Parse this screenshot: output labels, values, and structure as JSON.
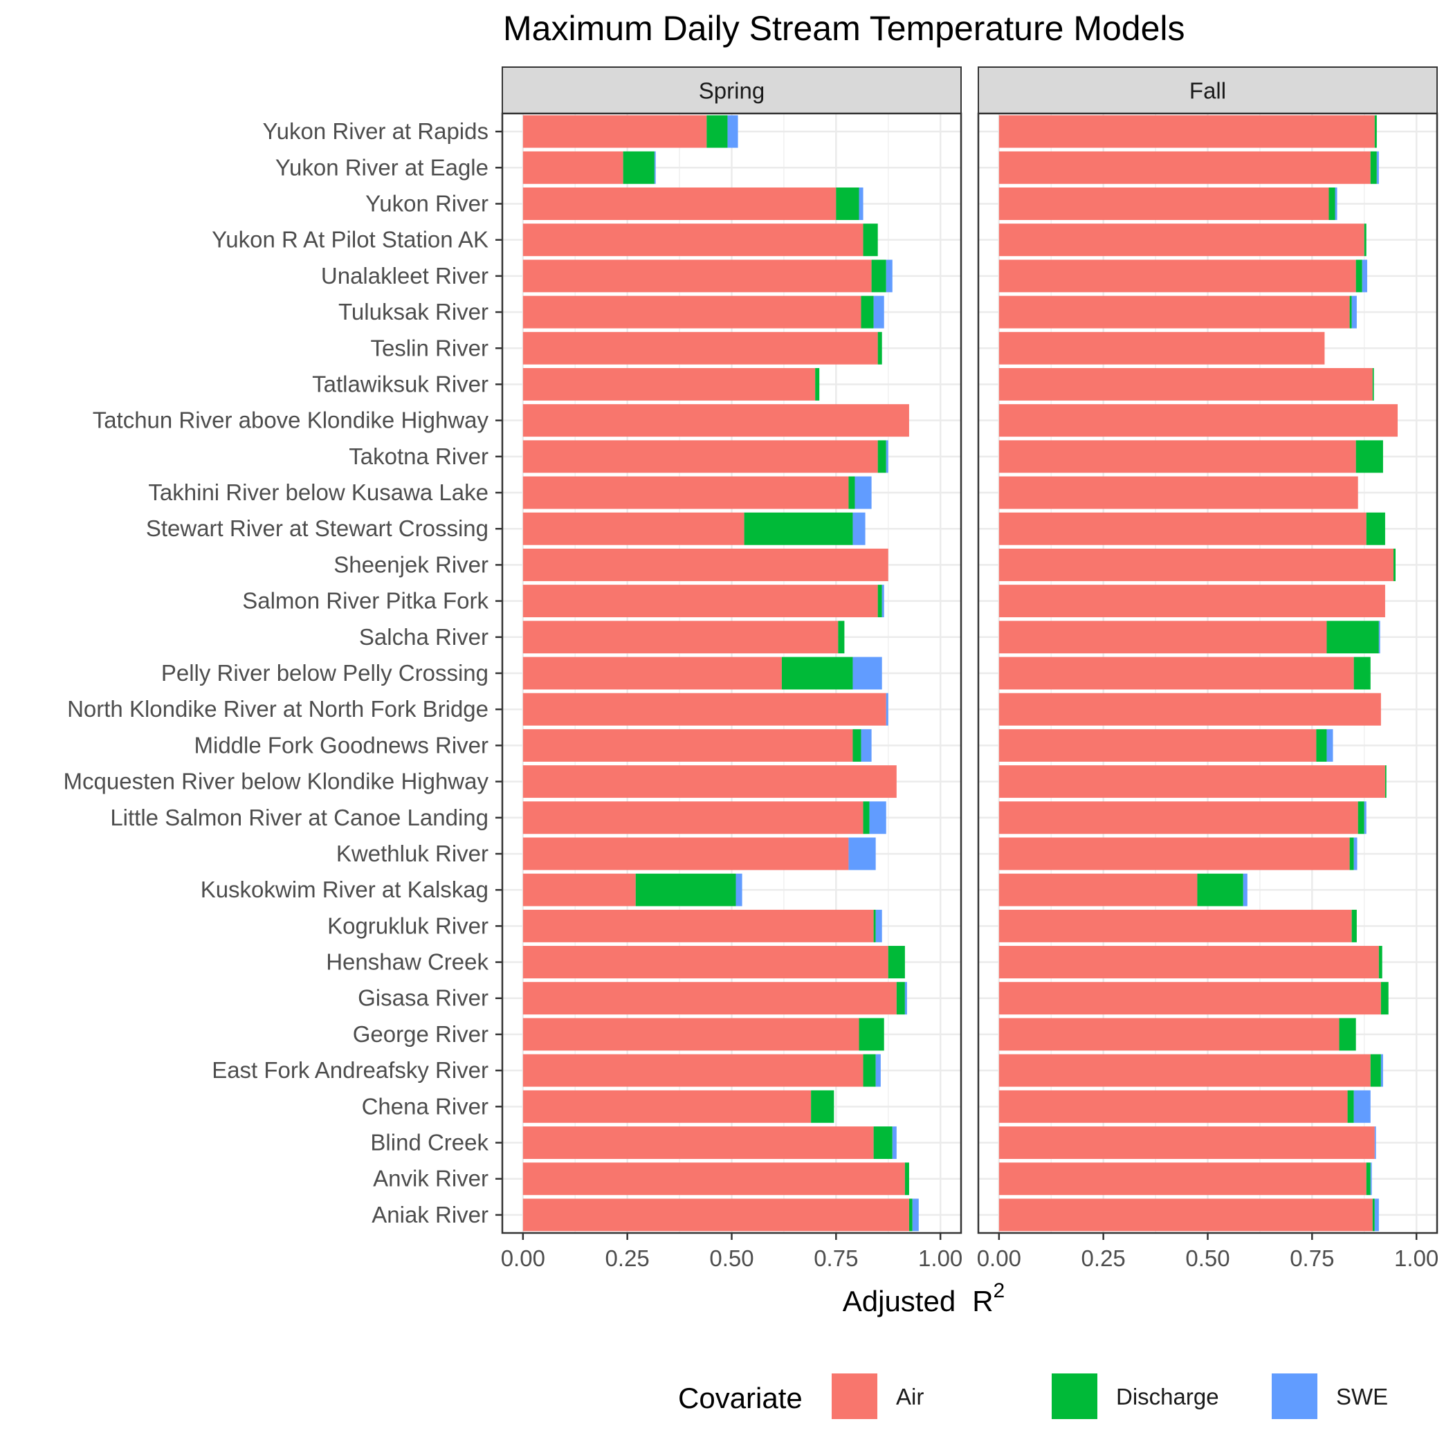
{
  "chart_data": {
    "type": "bar",
    "stacked": true,
    "orientation": "horizontal",
    "title": "Maximum Daily Stream Temperature Models",
    "xlabel": "Adjusted",
    "xlabel_r": "R",
    "xlabel_sup": "2",
    "xlim": [
      0,
      1
    ],
    "xticks": [
      "0.00",
      "0.25",
      "0.50",
      "0.75",
      "1.00"
    ],
    "grid": true,
    "legend": {
      "title": "Covariate",
      "position": "bottom",
      "entries": [
        "Air",
        "Discharge",
        "SWE"
      ]
    },
    "colors": {
      "Air": "#F8766D",
      "Discharge": "#00BA38",
      "SWE": "#619CFF"
    },
    "categories": [
      "Yukon River at Rapids",
      "Yukon River at Eagle",
      "Yukon River",
      "Yukon R At Pilot Station AK",
      "Unalakleet River",
      "Tuluksak River",
      "Teslin River",
      "Tatlawiksuk River",
      "Tatchun River above Klondike Highway",
      "Takotna River",
      "Takhini River below Kusawa Lake",
      "Stewart River at Stewart Crossing",
      "Sheenjek River",
      "Salmon River Pitka Fork",
      "Salcha River",
      "Pelly River below Pelly Crossing",
      "North Klondike River at North Fork Bridge",
      "Middle Fork Goodnews River",
      "Mcquesten River below Klondike Highway",
      "Little Salmon River at Canoe Landing",
      "Kwethluk River",
      "Kuskokwim River at Kalskag",
      "Kogrukluk River",
      "Henshaw Creek",
      "Gisasa River",
      "George River",
      "East Fork Andreafsky River",
      "Chena River",
      "Blind Creek",
      "Anvik River",
      "Aniak River"
    ],
    "panels": [
      {
        "name": "Spring",
        "series": [
          {
            "name": "Air",
            "values": [
              0.44,
              0.24,
              0.75,
              0.815,
              0.835,
              0.81,
              0.85,
              0.7,
              0.925,
              0.85,
              0.78,
              0.53,
              0.875,
              0.85,
              0.755,
              0.62,
              0.87,
              0.79,
              0.895,
              0.815,
              0.78,
              0.27,
              0.84,
              0.875,
              0.895,
              0.805,
              0.815,
              0.69,
              0.84,
              0.915,
              0.925
            ]
          },
          {
            "name": "Discharge",
            "values": [
              0.05,
              0.075,
              0.055,
              0.035,
              0.035,
              0.03,
              0.01,
              0.01,
              0,
              0.02,
              0.015,
              0.26,
              0,
              0.01,
              0.015,
              0.17,
              0,
              0.02,
              0,
              0.015,
              0,
              0.24,
              0.005,
              0.04,
              0.02,
              0.06,
              0.03,
              0.055,
              0.045,
              0.01,
              0.008
            ]
          },
          {
            "name": "SWE",
            "values": [
              0.025,
              0.003,
              0.01,
              0,
              0.015,
              0.025,
              0,
              0,
              0,
              0.005,
              0.04,
              0.03,
              0,
              0.005,
              0,
              0.07,
              0.005,
              0.025,
              0,
              0.04,
              0.065,
              0.015,
              0.015,
              0,
              0.005,
              0,
              0.012,
              0,
              0.01,
              0,
              0.015
            ]
          }
        ]
      },
      {
        "name": "Fall",
        "series": [
          {
            "name": "Air",
            "values": [
              0.9,
              0.89,
              0.79,
              0.875,
              0.855,
              0.84,
              0.78,
              0.895,
              0.955,
              0.855,
              0.86,
              0.88,
              0.945,
              0.925,
              0.785,
              0.85,
              0.915,
              0.76,
              0.925,
              0.86,
              0.84,
              0.475,
              0.845,
              0.91,
              0.915,
              0.815,
              0.89,
              0.835,
              0.9,
              0.88,
              0.895
            ]
          },
          {
            "name": "Discharge",
            "values": [
              0.005,
              0.015,
              0.015,
              0.005,
              0.015,
              0.005,
              0,
              0.003,
              0,
              0.065,
              0,
              0.045,
              0.005,
              0,
              0.125,
              0.04,
              0,
              0.025,
              0.003,
              0.015,
              0.01,
              0.11,
              0.012,
              0.008,
              0.018,
              0.04,
              0.025,
              0.015,
              0,
              0.01,
              0.005
            ]
          },
          {
            "name": "SWE",
            "values": [
              0,
              0.005,
              0.005,
              0,
              0.012,
              0.012,
              0,
              0,
              0,
              0,
              0,
              0,
              0,
              0,
              0.003,
              0,
              0,
              0.015,
              0,
              0.005,
              0.008,
              0.01,
              0,
              0,
              0,
              0,
              0.005,
              0.04,
              0.003,
              0.003,
              0.01
            ]
          }
        ]
      }
    ]
  }
}
